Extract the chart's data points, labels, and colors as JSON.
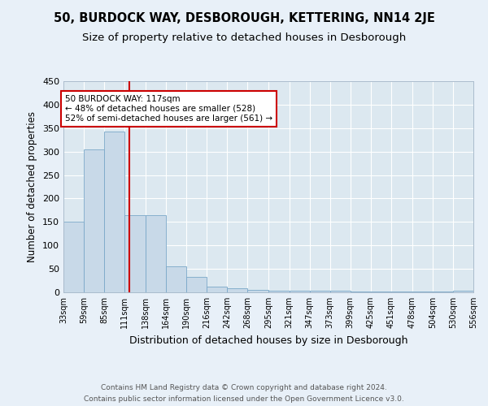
{
  "title": "50, BURDOCK WAY, DESBOROUGH, KETTERING, NN14 2JE",
  "subtitle": "Size of property relative to detached houses in Desborough",
  "xlabel": "Distribution of detached houses by size in Desborough",
  "ylabel": "Number of detached properties",
  "bin_edges": [
    33,
    59,
    85,
    111,
    138,
    164,
    190,
    216,
    242,
    268,
    295,
    321,
    347,
    373,
    399,
    425,
    451,
    478,
    504,
    530,
    556
  ],
  "bar_heights": [
    150,
    305,
    343,
    165,
    165,
    55,
    33,
    12,
    8,
    5,
    4,
    3,
    3,
    3,
    2,
    2,
    1,
    1,
    1,
    3
  ],
  "bar_color": "#c8d9e8",
  "bar_edge_color": "#7aa8c8",
  "property_size": 117,
  "red_line_color": "#cc0000",
  "annotation_text": "50 BURDOCK WAY: 117sqm\n← 48% of detached houses are smaller (528)\n52% of semi-detached houses are larger (561) →",
  "annotation_box_color": "#ffffff",
  "annotation_box_edge_color": "#cc0000",
  "ylim": [
    0,
    450
  ],
  "yticks": [
    0,
    50,
    100,
    150,
    200,
    250,
    300,
    350,
    400,
    450
  ],
  "footer_line1": "Contains HM Land Registry data © Crown copyright and database right 2024.",
  "footer_line2": "Contains public sector information licensed under the Open Government Licence v3.0.",
  "bg_color": "#dce8f0",
  "fig_bg_color": "#e8f0f8",
  "grid_color": "#ffffff",
  "title_fontsize": 10.5,
  "subtitle_fontsize": 9.5,
  "tick_label_fontsize": 7,
  "ylabel_fontsize": 8.5,
  "xlabel_fontsize": 9
}
